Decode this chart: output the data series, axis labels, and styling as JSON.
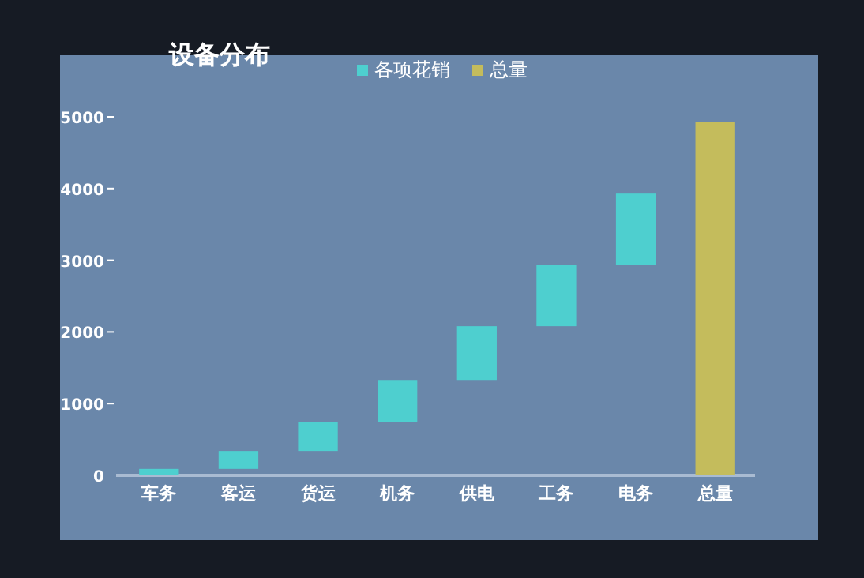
{
  "chart_data": {
    "type": "bar",
    "title": "设备分布",
    "categories": [
      "车务",
      "客运",
      "货运",
      "机务",
      "供电",
      "工务",
      "电务",
      "总量"
    ],
    "series": [
      {
        "name": "各项花销",
        "color": "#4ecfcf",
        "base": [
          0,
          90,
          340,
          740,
          1330,
          2080,
          2930,
          null
        ],
        "values": [
          90,
          250,
          400,
          590,
          750,
          850,
          1000,
          null
        ]
      },
      {
        "name": "总量",
        "color": "#c4bc5c",
        "base": [
          null,
          null,
          null,
          null,
          null,
          null,
          null,
          0
        ],
        "values": [
          null,
          null,
          null,
          null,
          null,
          null,
          null,
          4930
        ]
      }
    ],
    "ylim": [
      0,
      5000
    ],
    "yticks": [
      0,
      1000,
      2000,
      3000,
      4000,
      5000
    ],
    "legend": "top",
    "grid": false
  }
}
